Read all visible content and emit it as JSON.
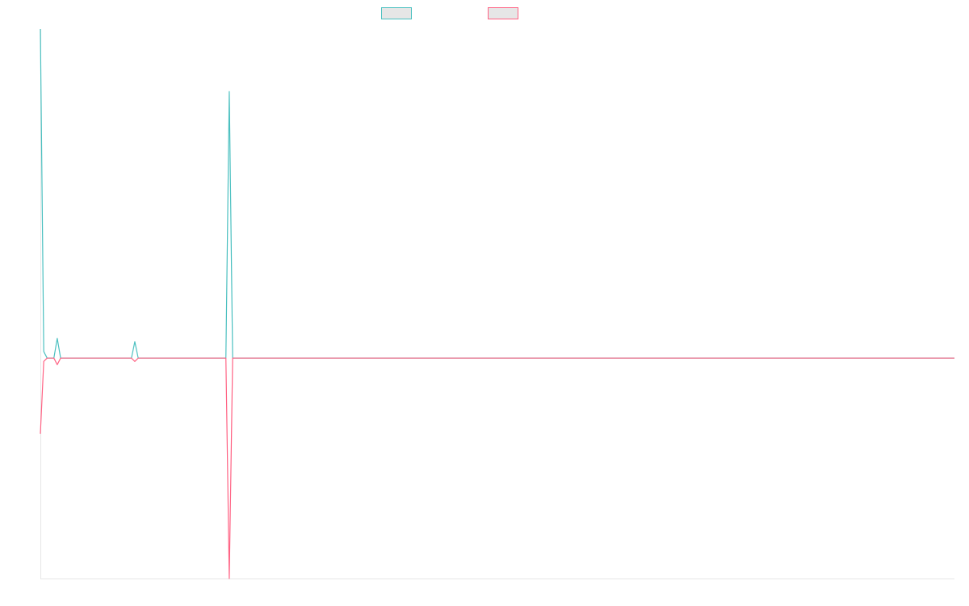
{
  "chart_data": {
    "type": "line",
    "title": "",
    "xlabel": "",
    "ylabel": "",
    "grid": false,
    "axes_visible": true,
    "tick_labels_visible": false,
    "legend_placement": "top-center",
    "series": [
      {
        "color": "#4bc0c0",
        "fill": "#e6e6e6",
        "values": [
          100,
          2,
          0,
          0,
          0,
          6,
          0,
          0,
          0,
          0,
          0,
          0,
          0,
          0,
          0,
          0,
          0,
          0,
          0,
          0,
          0,
          0,
          0,
          0,
          0,
          0,
          0,
          0,
          5,
          0,
          0,
          0,
          0,
          0,
          0,
          0,
          0,
          0,
          0,
          0,
          0,
          0,
          0,
          0,
          0,
          0,
          0,
          0,
          0,
          0,
          0,
          0,
          0,
          0,
          0,
          0,
          81,
          0,
          0,
          0,
          0,
          0,
          0,
          0,
          0,
          0,
          0,
          0,
          0,
          0,
          0,
          0,
          0,
          0,
          0,
          0,
          0,
          0,
          0,
          0,
          0,
          0,
          0,
          0,
          0,
          0,
          0,
          0,
          0,
          0,
          0,
          0,
          0,
          0,
          0,
          0,
          0,
          0,
          0,
          0,
          0,
          0,
          0,
          0,
          0,
          0,
          0,
          0,
          0,
          0,
          0,
          0,
          0,
          0,
          0,
          0,
          0,
          0,
          0,
          0,
          0,
          0,
          0,
          0,
          0,
          0,
          0,
          0,
          0,
          0,
          0,
          0,
          0,
          0,
          0,
          0,
          0,
          0,
          0,
          0,
          0,
          0,
          0,
          0,
          0,
          0,
          0,
          0,
          0,
          0,
          0,
          0,
          0,
          0,
          0,
          0,
          0,
          0,
          0,
          0,
          0,
          0,
          0,
          0,
          0,
          0,
          0,
          0,
          0,
          0,
          0,
          0,
          0,
          0,
          0,
          0,
          0,
          0,
          0,
          0,
          0,
          0,
          0,
          0,
          0,
          0,
          0,
          0,
          0,
          0,
          0,
          0,
          0,
          0,
          0,
          0,
          0,
          0,
          0,
          0,
          0,
          0,
          0,
          0,
          0,
          0,
          0,
          0,
          0,
          0,
          0,
          0,
          0,
          0,
          0,
          0,
          0,
          0,
          0,
          0,
          0,
          0,
          0,
          0,
          0,
          0,
          0,
          0,
          0,
          0,
          0,
          0,
          0,
          0,
          0,
          0,
          0,
          0,
          0,
          0,
          0,
          0,
          0,
          0,
          0,
          0,
          0,
          0,
          0,
          0,
          0,
          0,
          0,
          0,
          0,
          0,
          0,
          0,
          0,
          0,
          0,
          0,
          0,
          0,
          0,
          0,
          0,
          0,
          0,
          0,
          0,
          0
        ]
      },
      {
        "color": "#ff6384",
        "fill": "#e6e6e6",
        "values": [
          -23,
          -1,
          0,
          0,
          0,
          -2,
          0,
          0,
          0,
          0,
          0,
          0,
          0,
          0,
          0,
          0,
          0,
          0,
          0,
          0,
          0,
          0,
          0,
          0,
          0,
          0,
          0,
          0,
          -1,
          0,
          0,
          0,
          0,
          0,
          0,
          0,
          0,
          0,
          0,
          0,
          0,
          0,
          0,
          0,
          0,
          0,
          0,
          0,
          0,
          0,
          0,
          0,
          0,
          0,
          0,
          0,
          -67,
          0,
          0,
          0,
          0,
          0,
          0,
          0,
          0,
          0,
          0,
          0,
          0,
          0,
          0,
          0,
          0,
          0,
          0,
          0,
          0,
          0,
          0,
          0,
          0,
          0,
          0,
          0,
          0,
          0,
          0,
          0,
          0,
          0,
          0,
          0,
          0,
          0,
          0,
          0,
          0,
          0,
          0,
          0,
          0,
          0,
          0,
          0,
          0,
          0,
          0,
          0,
          0,
          0,
          0,
          0,
          0,
          0,
          0,
          0,
          0,
          0,
          0,
          0,
          0,
          0,
          0,
          0,
          0,
          0,
          0,
          0,
          0,
          0,
          0,
          0,
          0,
          0,
          0,
          0,
          0,
          0,
          0,
          0,
          0,
          0,
          0,
          0,
          0,
          0,
          0,
          0,
          0,
          0,
          0,
          0,
          0,
          0,
          0,
          0,
          0,
          0,
          0,
          0,
          0,
          0,
          0,
          0,
          0,
          0,
          0,
          0,
          0,
          0,
          0,
          0,
          0,
          0,
          0,
          0,
          0,
          0,
          0,
          0,
          0,
          0,
          0,
          0,
          0,
          0,
          0,
          0,
          0,
          0,
          0,
          0,
          0,
          0,
          0,
          0,
          0,
          0,
          0,
          0,
          0,
          0,
          0,
          0,
          0,
          0,
          0,
          0,
          0,
          0,
          0,
          0,
          0,
          0,
          0,
          0,
          0,
          0,
          0,
          0,
          0,
          0,
          0,
          0,
          0,
          0,
          0,
          0,
          0,
          0,
          0,
          0,
          0,
          0,
          0,
          0,
          0,
          0,
          0,
          0,
          0,
          0,
          0,
          0,
          0,
          0,
          0,
          0,
          0,
          0,
          0,
          0,
          0,
          0,
          0,
          0,
          0,
          0,
          0,
          0,
          0,
          0,
          0,
          0,
          0,
          0,
          0,
          0,
          0,
          0,
          0,
          0
        ]
      }
    ],
    "ylim": [
      -67,
      100
    ],
    "axis_color": "#e6e6e6"
  }
}
